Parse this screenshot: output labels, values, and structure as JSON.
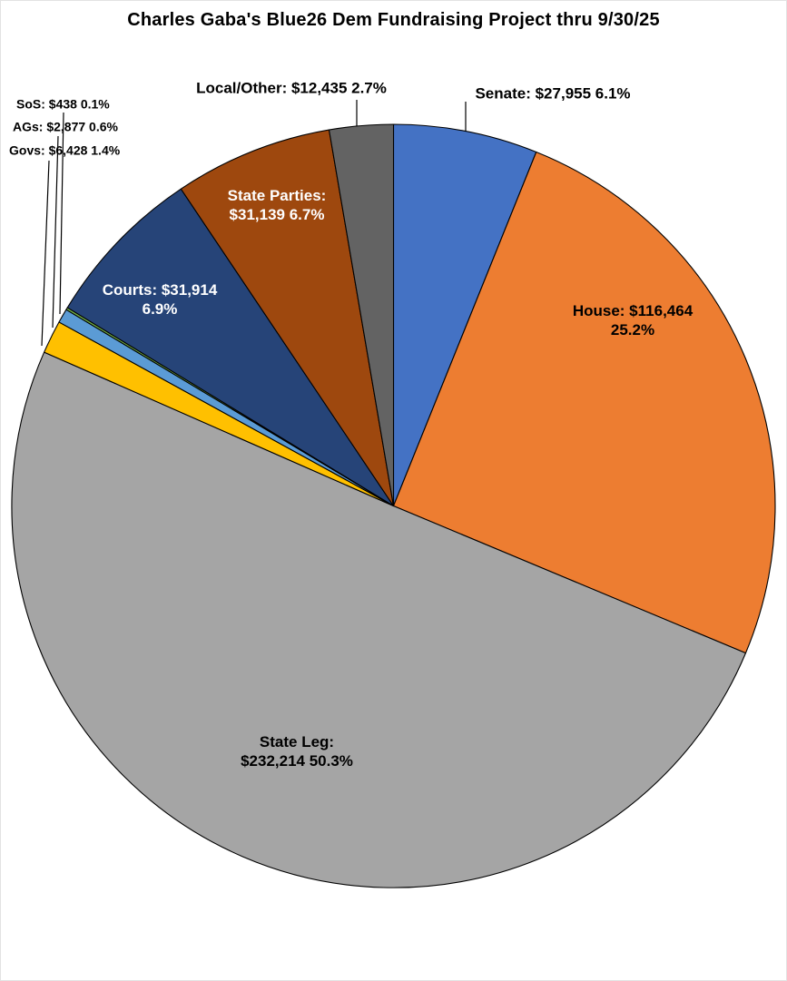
{
  "title": "Charles Gaba's Blue26 Dem Fundraising Project thru 9/30/25",
  "chart_data": {
    "type": "pie",
    "title": "Charles Gaba's Blue26 Dem Fundraising Project thru 9/30/25",
    "start_angle_deg": 0,
    "direction": "clockwise",
    "total_percent": 100.0,
    "slices": [
      {
        "name": "Senate",
        "amount": 27955,
        "percent": 6.1,
        "color": "#4472C4",
        "label": "Senate: $27,955 6.1%"
      },
      {
        "name": "House",
        "amount": 116464,
        "percent": 25.2,
        "color": "#ED7D31",
        "label": "House: $116,464 25.2%",
        "label_line1": "House: $116,464",
        "label_line2": "25.2%"
      },
      {
        "name": "State Leg",
        "amount": 232214,
        "percent": 50.3,
        "color": "#A5A5A5",
        "label": "State Leg: $232,214 50.3%",
        "label_line1": "State Leg:",
        "label_line2": "$232,214 50.3%"
      },
      {
        "name": "Govs",
        "amount": 6428,
        "percent": 1.4,
        "color": "#FFC000",
        "label": "Govs: $6,428 1.4%"
      },
      {
        "name": "AGs",
        "amount": 2877,
        "percent": 0.6,
        "color": "#5B9BD5",
        "label": "AGs: $2,877 0.6%"
      },
      {
        "name": "SoS",
        "amount": 438,
        "percent": 0.1,
        "color": "#70AD47",
        "label": "SoS: $438 0.1%"
      },
      {
        "name": "Courts",
        "amount": 31914,
        "percent": 6.9,
        "color": "#264478",
        "label": "Courts: $31,914 6.9%",
        "label_line1": "Courts: $31,914",
        "label_line2": "6.9%"
      },
      {
        "name": "State Parties",
        "amount": 31139,
        "percent": 6.7,
        "color": "#9E480E",
        "label": "State Parties: $31,139 6.7%",
        "label_line1": "State Parties:",
        "label_line2": "$31,139 6.7%"
      },
      {
        "name": "Local/Other",
        "amount": 12435,
        "percent": 2.7,
        "color": "#636363",
        "label": "Local/Other: $12,435 2.7%"
      }
    ]
  }
}
